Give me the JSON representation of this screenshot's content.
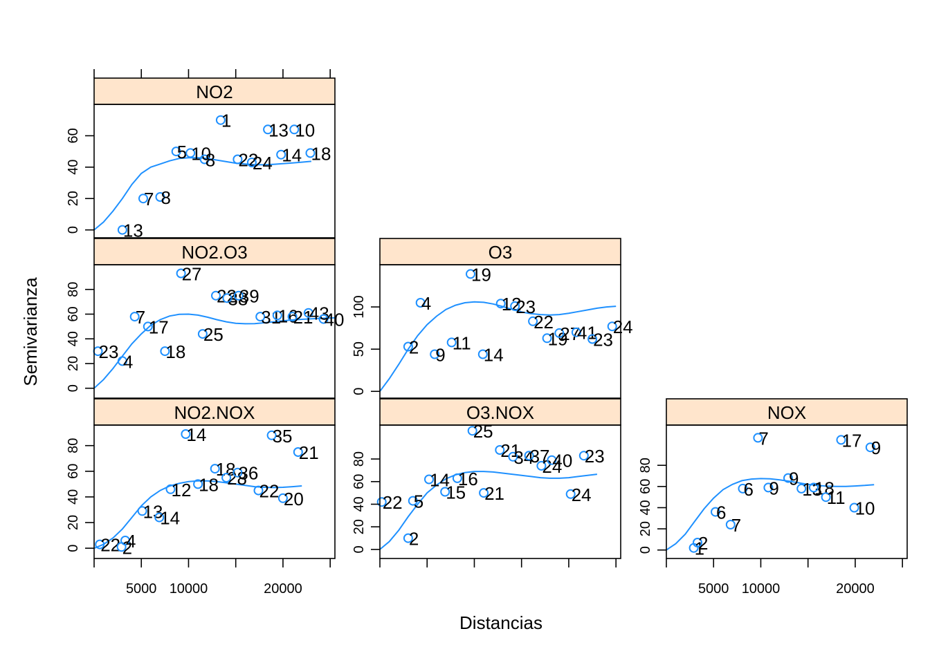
{
  "chart_data": {
    "type": "scatter",
    "xlabel": "Distancias",
    "ylabel": "Semivarianza",
    "x_ticks": [
      5000,
      10000,
      20000
    ],
    "xlim": [
      0,
      25500
    ],
    "panels": [
      {
        "id": "NO2",
        "title": "NO2",
        "col": 0,
        "row": 0,
        "ylim": [
          -5,
          80
        ],
        "y_ticks": [
          0,
          20,
          40,
          60
        ],
        "points": [
          {
            "x": 3000,
            "y": 0,
            "label": "13"
          },
          {
            "x": 5200,
            "y": 20,
            "label": "7"
          },
          {
            "x": 7000,
            "y": 21,
            "label": "8"
          },
          {
            "x": 8700,
            "y": 50,
            "label": "5"
          },
          {
            "x": 10200,
            "y": 49,
            "label": "10"
          },
          {
            "x": 11700,
            "y": 45,
            "label": "8"
          },
          {
            "x": 13400,
            "y": 70,
            "label": "1"
          },
          {
            "x": 15200,
            "y": 45,
            "label": "22"
          },
          {
            "x": 16700,
            "y": 43,
            "label": "24"
          },
          {
            "x": 18400,
            "y": 64,
            "label": "13"
          },
          {
            "x": 19800,
            "y": 48,
            "label": "14"
          },
          {
            "x": 21200,
            "y": 64,
            "label": "10"
          },
          {
            "x": 22900,
            "y": 49,
            "label": "18"
          }
        ],
        "fit": [
          [
            0,
            0
          ],
          [
            1000,
            5
          ],
          [
            2000,
            12
          ],
          [
            3000,
            20
          ],
          [
            4000,
            29
          ],
          [
            5000,
            36
          ],
          [
            6000,
            40
          ],
          [
            7000,
            42
          ],
          [
            8000,
            44
          ],
          [
            9000,
            45.5
          ],
          [
            10000,
            46
          ],
          [
            11000,
            46
          ],
          [
            12000,
            45.5
          ],
          [
            13000,
            44.5
          ],
          [
            14000,
            43.5
          ],
          [
            15000,
            42.5
          ],
          [
            16000,
            42
          ],
          [
            17000,
            41.5
          ],
          [
            18000,
            41.5
          ],
          [
            19000,
            41.8
          ],
          [
            20000,
            42.2
          ],
          [
            21000,
            42.7
          ],
          [
            22000,
            43.2
          ],
          [
            23000,
            43.7
          ]
        ]
      },
      {
        "id": "NO2.O3",
        "title": "NO2.O3",
        "col": 0,
        "row": 1,
        "ylim": [
          -8,
          100
        ],
        "y_ticks": [
          0,
          20,
          40,
          60,
          80
        ],
        "points": [
          {
            "x": 400,
            "y": 30,
            "label": "23"
          },
          {
            "x": 3000,
            "y": 22,
            "label": "4"
          },
          {
            "x": 4300,
            "y": 58,
            "label": "7"
          },
          {
            "x": 5700,
            "y": 50,
            "label": "17"
          },
          {
            "x": 7500,
            "y": 30,
            "label": "18"
          },
          {
            "x": 9200,
            "y": 93,
            "label": "27"
          },
          {
            "x": 11500,
            "y": 44,
            "label": "25"
          },
          {
            "x": 12900,
            "y": 75,
            "label": "22"
          },
          {
            "x": 14100,
            "y": 73,
            "label": "38"
          },
          {
            "x": 15300,
            "y": 75,
            "label": "39"
          },
          {
            "x": 17600,
            "y": 58,
            "label": "31"
          },
          {
            "x": 19400,
            "y": 59,
            "label": "16"
          },
          {
            "x": 21000,
            "y": 58,
            "label": "21"
          },
          {
            "x": 22700,
            "y": 61,
            "label": "43"
          },
          {
            "x": 24300,
            "y": 56,
            "label": "40"
          }
        ],
        "fit": [
          [
            0,
            0
          ],
          [
            1000,
            7
          ],
          [
            2000,
            16
          ],
          [
            3000,
            26
          ],
          [
            4000,
            36
          ],
          [
            5000,
            44
          ],
          [
            6000,
            51
          ],
          [
            7000,
            55.5
          ],
          [
            8000,
            58.5
          ],
          [
            9000,
            59.8
          ],
          [
            10000,
            60
          ],
          [
            11000,
            59.2
          ],
          [
            12000,
            57.5
          ],
          [
            13000,
            55.5
          ],
          [
            14000,
            53.8
          ],
          [
            15000,
            52.6
          ],
          [
            16000,
            52.2
          ],
          [
            17000,
            52.3
          ],
          [
            18000,
            53
          ],
          [
            19000,
            53.8
          ],
          [
            20000,
            54.6
          ],
          [
            21000,
            55.3
          ],
          [
            22000,
            55.8
          ],
          [
            23000,
            56.2
          ],
          [
            24000,
            56.6
          ],
          [
            25500,
            57
          ]
        ]
      },
      {
        "id": "O3",
        "title": "O3",
        "col": 1,
        "row": 1,
        "ylim": [
          -8,
          150
        ],
        "y_ticks": [
          0,
          50,
          100
        ],
        "points": [
          {
            "x": 3000,
            "y": 53,
            "label": "2"
          },
          {
            "x": 4300,
            "y": 105,
            "label": "4"
          },
          {
            "x": 5800,
            "y": 44,
            "label": "9"
          },
          {
            "x": 7600,
            "y": 58,
            "label": "11"
          },
          {
            "x": 9600,
            "y": 139,
            "label": "19"
          },
          {
            "x": 10900,
            "y": 44,
            "label": "14"
          },
          {
            "x": 12800,
            "y": 104,
            "label": "12"
          },
          {
            "x": 14300,
            "y": 101,
            "label": "23"
          },
          {
            "x": 16200,
            "y": 83,
            "label": "22"
          },
          {
            "x": 17700,
            "y": 63,
            "label": "19"
          },
          {
            "x": 19000,
            "y": 69,
            "label": "27"
          },
          {
            "x": 20800,
            "y": 70,
            "label": "41"
          },
          {
            "x": 22500,
            "y": 62,
            "label": "23"
          },
          {
            "x": 24600,
            "y": 77,
            "label": "24"
          }
        ],
        "fit": [
          [
            0,
            0
          ],
          [
            1000,
            15
          ],
          [
            2000,
            32
          ],
          [
            3000,
            50
          ],
          [
            4000,
            66
          ],
          [
            5000,
            79
          ],
          [
            6000,
            89
          ],
          [
            7000,
            97
          ],
          [
            8000,
            102
          ],
          [
            9000,
            105
          ],
          [
            10000,
            106
          ],
          [
            11000,
            105.5
          ],
          [
            12000,
            103.5
          ],
          [
            13000,
            100.5
          ],
          [
            14000,
            97
          ],
          [
            15000,
            94
          ],
          [
            16000,
            92
          ],
          [
            17000,
            91
          ],
          [
            18000,
            90.5
          ],
          [
            19000,
            91
          ],
          [
            20000,
            92.5
          ],
          [
            21000,
            94.5
          ],
          [
            22000,
            96.5
          ],
          [
            23000,
            98.5
          ],
          [
            24000,
            100
          ],
          [
            25000,
            100.8
          ]
        ]
      },
      {
        "id": "NO2.NOX",
        "title": "NO2.NOX",
        "col": 0,
        "row": 2,
        "ylim": [
          -8,
          96
        ],
        "y_ticks": [
          0,
          20,
          40,
          60,
          80
        ],
        "points": [
          {
            "x": 600,
            "y": 3,
            "label": "22"
          },
          {
            "x": 2900,
            "y": 1,
            "label": "2"
          },
          {
            "x": 3300,
            "y": 6,
            "label": "4"
          },
          {
            "x": 5100,
            "y": 29,
            "label": "13"
          },
          {
            "x": 6900,
            "y": 24,
            "label": "14"
          },
          {
            "x": 8100,
            "y": 46,
            "label": "12"
          },
          {
            "x": 9700,
            "y": 89,
            "label": "14"
          },
          {
            "x": 11000,
            "y": 50,
            "label": "18"
          },
          {
            "x": 12800,
            "y": 62,
            "label": "18"
          },
          {
            "x": 14000,
            "y": 55,
            "label": "28"
          },
          {
            "x": 15200,
            "y": 59,
            "label": "36"
          },
          {
            "x": 17400,
            "y": 45,
            "label": "22"
          },
          {
            "x": 18800,
            "y": 88,
            "label": "35"
          },
          {
            "x": 20000,
            "y": 39,
            "label": "20"
          },
          {
            "x": 21600,
            "y": 75,
            "label": "21"
          }
        ],
        "fit": [
          [
            0,
            0
          ],
          [
            1000,
            3
          ],
          [
            2000,
            8
          ],
          [
            3000,
            15
          ],
          [
            4000,
            24
          ],
          [
            5000,
            33
          ],
          [
            6000,
            40
          ],
          [
            7000,
            45
          ],
          [
            8000,
            48.5
          ],
          [
            9000,
            50.5
          ],
          [
            10000,
            52
          ],
          [
            11000,
            52.5
          ],
          [
            12000,
            52.5
          ],
          [
            13000,
            52
          ],
          [
            14000,
            51
          ],
          [
            15000,
            50
          ],
          [
            16000,
            49
          ],
          [
            17000,
            48
          ],
          [
            18000,
            47.5
          ],
          [
            19000,
            47.3
          ],
          [
            20000,
            47.5
          ],
          [
            21000,
            48
          ],
          [
            22000,
            48.6
          ]
        ]
      },
      {
        "id": "O3.NOX",
        "title": "O3.NOX",
        "col": 1,
        "row": 2,
        "ylim": [
          -8,
          110
        ],
        "y_ticks": [
          0,
          20,
          40,
          60,
          80
        ],
        "points": [
          {
            "x": 200,
            "y": 42,
            "label": "22"
          },
          {
            "x": 3000,
            "y": 10,
            "label": "2"
          },
          {
            "x": 3500,
            "y": 43,
            "label": "5"
          },
          {
            "x": 5200,
            "y": 62,
            "label": "14"
          },
          {
            "x": 6900,
            "y": 51,
            "label": "15"
          },
          {
            "x": 8200,
            "y": 63,
            "label": "16"
          },
          {
            "x": 9800,
            "y": 105,
            "label": "25"
          },
          {
            "x": 11000,
            "y": 50,
            "label": "21"
          },
          {
            "x": 12700,
            "y": 88,
            "label": "21"
          },
          {
            "x": 14100,
            "y": 82,
            "label": "34"
          },
          {
            "x": 15800,
            "y": 83,
            "label": "37"
          },
          {
            "x": 17100,
            "y": 74,
            "label": "24"
          },
          {
            "x": 18200,
            "y": 79,
            "label": "40"
          },
          {
            "x": 20200,
            "y": 49,
            "label": "24"
          },
          {
            "x": 21600,
            "y": 83,
            "label": "23"
          }
        ],
        "fit": [
          [
            0,
            0
          ],
          [
            1000,
            7
          ],
          [
            2000,
            17
          ],
          [
            3000,
            29
          ],
          [
            4000,
            40
          ],
          [
            5000,
            50
          ],
          [
            6000,
            57
          ],
          [
            7000,
            62.5
          ],
          [
            8000,
            66
          ],
          [
            9000,
            68
          ],
          [
            10000,
            69
          ],
          [
            11000,
            69
          ],
          [
            12000,
            68.5
          ],
          [
            13000,
            67.5
          ],
          [
            14000,
            66.5
          ],
          [
            15000,
            65.5
          ],
          [
            16000,
            64.5
          ],
          [
            17000,
            63.5
          ],
          [
            18000,
            63
          ],
          [
            19000,
            63
          ],
          [
            20000,
            63.5
          ],
          [
            21000,
            64.5
          ],
          [
            22000,
            65.5
          ],
          [
            23000,
            66.5
          ]
        ]
      },
      {
        "id": "NOX",
        "title": "NOX",
        "col": 2,
        "row": 2,
        "ylim": [
          -8,
          118
        ],
        "y_ticks": [
          0,
          20,
          40,
          60,
          80
        ],
        "points": [
          {
            "x": 2900,
            "y": 2,
            "label": "1"
          },
          {
            "x": 3300,
            "y": 7,
            "label": "2"
          },
          {
            "x": 5200,
            "y": 36,
            "label": "6"
          },
          {
            "x": 6800,
            "y": 24,
            "label": "7"
          },
          {
            "x": 8100,
            "y": 58,
            "label": "6"
          },
          {
            "x": 9700,
            "y": 106,
            "label": "7"
          },
          {
            "x": 10800,
            "y": 59,
            "label": "9"
          },
          {
            "x": 12900,
            "y": 68,
            "label": "9"
          },
          {
            "x": 14300,
            "y": 58,
            "label": "13"
          },
          {
            "x": 15600,
            "y": 59,
            "label": "18"
          },
          {
            "x": 16900,
            "y": 50,
            "label": "11"
          },
          {
            "x": 18500,
            "y": 104,
            "label": "17"
          },
          {
            "x": 19900,
            "y": 40,
            "label": "10"
          },
          {
            "x": 21600,
            "y": 97,
            "label": "9"
          }
        ],
        "fit": [
          [
            0,
            0
          ],
          [
            1000,
            6
          ],
          [
            2000,
            15
          ],
          [
            3000,
            27
          ],
          [
            4000,
            39
          ],
          [
            5000,
            49
          ],
          [
            6000,
            57
          ],
          [
            7000,
            62
          ],
          [
            8000,
            65.5
          ],
          [
            9000,
            67
          ],
          [
            10000,
            67.5
          ],
          [
            11000,
            67.3
          ],
          [
            12000,
            66.3
          ],
          [
            13000,
            65
          ],
          [
            14000,
            63.5
          ],
          [
            15000,
            62
          ],
          [
            16000,
            61
          ],
          [
            17000,
            60.3
          ],
          [
            18000,
            60
          ],
          [
            19000,
            60.1
          ],
          [
            20000,
            60.5
          ],
          [
            21000,
            61
          ],
          [
            22000,
            61.7
          ]
        ]
      }
    ]
  }
}
